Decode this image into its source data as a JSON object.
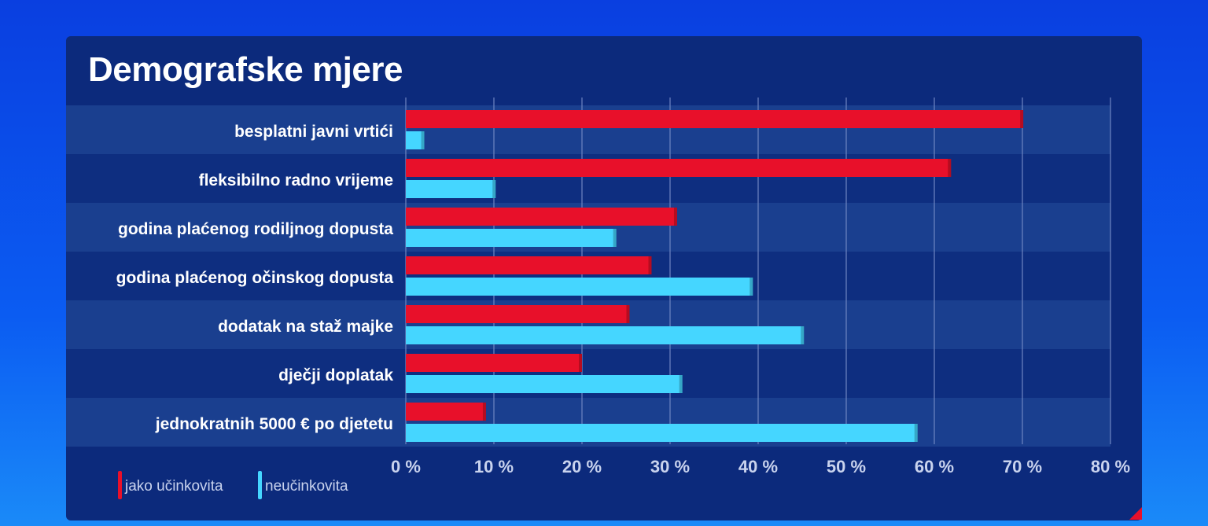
{
  "page": {
    "title": "Demografske mjere"
  },
  "chart_data": {
    "type": "bar",
    "orientation": "horizontal",
    "title": "Demografske mjere",
    "categories": [
      "besplatni javni vrtići",
      "fleksibilno radno vrijeme",
      "godina plaćenog rodiljnog dopusta",
      "godina plaćenog očinskog dopusta",
      "dodatak na staž majke",
      "dječji doplatak",
      "jednokratnih 5000 € po djetetu"
    ],
    "series": [
      {
        "name": "jako učinkovita",
        "color": "#e8102a",
        "values": [
          70.1,
          61.9,
          30.8,
          27.9,
          25.4,
          20.0,
          9.1
        ]
      },
      {
        "name": "neučinkovita",
        "color": "#45d6ff",
        "values": [
          2.1,
          10.2,
          23.9,
          39.4,
          45.2,
          31.4,
          58.1
        ]
      }
    ],
    "xlim": [
      0,
      80
    ],
    "xticks": [
      "0 %",
      "10 %",
      "20 %",
      "30 %",
      "40 %",
      "50 %",
      "60 %",
      "70 %",
      "80 %"
    ],
    "grid": true,
    "legend_position": "bottom-left",
    "colors": {
      "panel": "#0c2a7c",
      "band_light": "#1a3f8f",
      "band_dark": "#0e2e80"
    }
  }
}
